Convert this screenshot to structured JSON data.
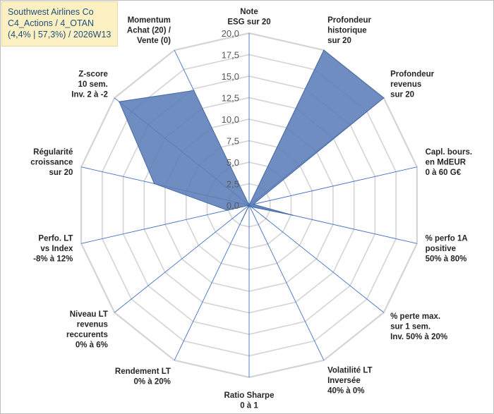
{
  "header": {
    "company": "Southwest Airlines Co",
    "portfolio": "C4_Actions / 4_OTAN",
    "stats": "(4,4% | 57,3%) / 2026W13"
  },
  "colors": {
    "fill": "#5b7db8",
    "stroke": "#4a6aa5",
    "grid": "#d4d4d4",
    "spoke": "#4472c4",
    "title_bg": "#fdf1c4",
    "title_text": "#1f4e79"
  },
  "chart_data": {
    "type": "radar",
    "ylim": [
      0,
      20
    ],
    "ticks": [
      "0,0",
      "2,5",
      "5,0",
      "7,5",
      "10,0",
      "12,5",
      "15,0",
      "17,5",
      "20,0"
    ],
    "categories": [
      [
        "Note",
        "ESG sur 20"
      ],
      [
        "Profondeur",
        "historique",
        "sur 20"
      ],
      [
        "Profondeur",
        "revenus",
        "sur 20"
      ],
      [
        "Capl. bours.",
        "en MdEUR",
        "0 à 60 G€"
      ],
      [
        "% perfo 1A",
        "positive",
        "50% à 80%"
      ],
      [
        "% perte max.",
        "sur 1 sem.",
        "Inv. 50% à 20%"
      ],
      [
        "Volatilité LT",
        "Inversée",
        "40% à 0%"
      ],
      [
        "Ratio Sharpe",
        "0 à 1"
      ],
      [
        "Rendement LT",
        "0% à 20%"
      ],
      [
        "Niveau LT",
        "revenus",
        "reccurents",
        "0% à 6%"
      ],
      [
        "Perfo. LT",
        "vs Index",
        "-8% à 12%"
      ],
      [
        "Régularité",
        "croissance",
        "sur 20"
      ],
      [
        "Z-score",
        "10 sem.",
        "Inv. 2 à -2"
      ],
      [
        "Momentum",
        "Achat (20) /",
        "Vente (0)"
      ]
    ],
    "series": [
      {
        "name": "Southwest Airlines Co",
        "values": [
          0,
          20,
          20,
          0.5,
          5.2,
          0.3,
          0.1,
          0,
          2.0,
          0,
          2.6,
          11.3,
          19.3,
          14.8
        ]
      }
    ]
  }
}
